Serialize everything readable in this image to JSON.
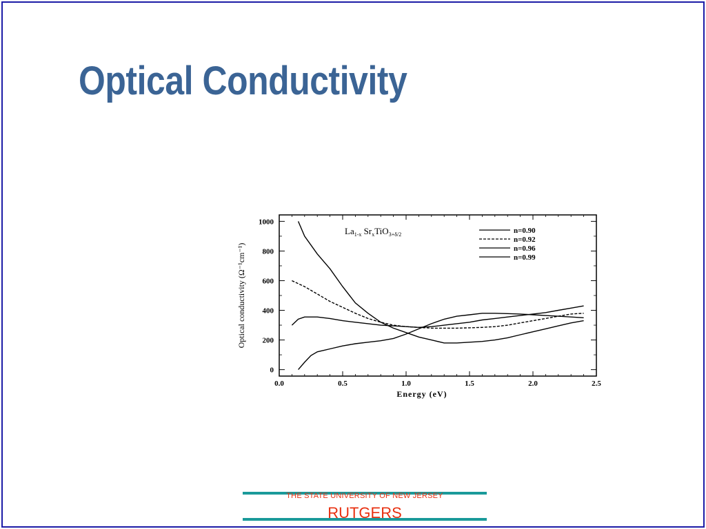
{
  "slide": {
    "title": "Optical Conductivity"
  },
  "footer": {
    "institution_line": "THE STATE UNIVERSITY OF NEW JERSEY",
    "institution_name": "RUTGERS",
    "line_color": "#1a9a9a",
    "text_color": "#e83010"
  },
  "colors": {
    "title": "#3b6495",
    "frame": "#1a1aa6"
  },
  "chart_data": {
    "type": "line",
    "title": "La1-x SrxTiO3+δ/2",
    "title_main": "La",
    "title_sub1": "1-x",
    "title_mid": " Sr",
    "title_sub2": "x",
    "title_mid2": "TiO",
    "title_sub3": "3+δ/2",
    "xlabel": "Energy (eV)",
    "ylabel": "Optical conductivity (Ω⁻¹cm⁻¹)",
    "xlim": [
      0.0,
      2.5
    ],
    "ylim": [
      0,
      1000
    ],
    "xticks": [
      "0.0",
      "0.5",
      "1.0",
      "1.5",
      "2.0",
      "2.5"
    ],
    "yticks": [
      "0",
      "200",
      "400",
      "600",
      "800",
      "1000"
    ],
    "legend_position": "top-right",
    "series": [
      {
        "name": "n=0.90",
        "dash": "solid",
        "points": [
          [
            0.15,
            1000
          ],
          [
            0.2,
            900
          ],
          [
            0.3,
            780
          ],
          [
            0.4,
            680
          ],
          [
            0.5,
            560
          ],
          [
            0.6,
            450
          ],
          [
            0.7,
            380
          ],
          [
            0.8,
            320
          ],
          [
            0.9,
            280
          ],
          [
            1.0,
            250
          ],
          [
            1.1,
            220
          ],
          [
            1.2,
            200
          ],
          [
            1.3,
            180
          ],
          [
            1.4,
            180
          ],
          [
            1.5,
            185
          ],
          [
            1.6,
            190
          ],
          [
            1.7,
            200
          ],
          [
            1.8,
            215
          ],
          [
            1.9,
            235
          ],
          [
            2.0,
            255
          ],
          [
            2.1,
            275
          ],
          [
            2.2,
            295
          ],
          [
            2.3,
            315
          ],
          [
            2.4,
            330
          ]
        ]
      },
      {
        "name": "n=0.92",
        "dash": "dashed",
        "points": [
          [
            0.1,
            600
          ],
          [
            0.2,
            560
          ],
          [
            0.3,
            510
          ],
          [
            0.4,
            460
          ],
          [
            0.5,
            420
          ],
          [
            0.6,
            380
          ],
          [
            0.7,
            345
          ],
          [
            0.8,
            320
          ],
          [
            0.9,
            300
          ],
          [
            1.0,
            290
          ],
          [
            1.1,
            285
          ],
          [
            1.2,
            280
          ],
          [
            1.3,
            280
          ],
          [
            1.4,
            280
          ],
          [
            1.5,
            282
          ],
          [
            1.6,
            285
          ],
          [
            1.7,
            290
          ],
          [
            1.8,
            300
          ],
          [
            1.9,
            315
          ],
          [
            2.0,
            330
          ],
          [
            2.1,
            345
          ],
          [
            2.2,
            360
          ],
          [
            2.3,
            375
          ],
          [
            2.4,
            380
          ]
        ]
      },
      {
        "name": "n=0.96",
        "dash": "solid",
        "points": [
          [
            0.1,
            300
          ],
          [
            0.15,
            340
          ],
          [
            0.2,
            355
          ],
          [
            0.3,
            355
          ],
          [
            0.4,
            345
          ],
          [
            0.5,
            330
          ],
          [
            0.6,
            320
          ],
          [
            0.7,
            310
          ],
          [
            0.8,
            300
          ],
          [
            0.9,
            295
          ],
          [
            1.0,
            290
          ],
          [
            1.1,
            285
          ],
          [
            1.2,
            290
          ],
          [
            1.3,
            300
          ],
          [
            1.4,
            310
          ],
          [
            1.5,
            320
          ],
          [
            1.6,
            335
          ],
          [
            1.7,
            345
          ],
          [
            1.8,
            355
          ],
          [
            1.9,
            365
          ],
          [
            2.0,
            375
          ],
          [
            2.1,
            385
          ],
          [
            2.2,
            400
          ],
          [
            2.3,
            415
          ],
          [
            2.4,
            430
          ]
        ]
      },
      {
        "name": "n=0.99",
        "dash": "solid",
        "points": [
          [
            0.15,
            0
          ],
          [
            0.2,
            50
          ],
          [
            0.25,
            95
          ],
          [
            0.3,
            120
          ],
          [
            0.4,
            140
          ],
          [
            0.5,
            160
          ],
          [
            0.6,
            175
          ],
          [
            0.7,
            185
          ],
          [
            0.8,
            195
          ],
          [
            0.9,
            210
          ],
          [
            1.0,
            240
          ],
          [
            1.1,
            275
          ],
          [
            1.2,
            310
          ],
          [
            1.3,
            340
          ],
          [
            1.4,
            360
          ],
          [
            1.5,
            370
          ],
          [
            1.6,
            380
          ],
          [
            1.7,
            380
          ],
          [
            1.8,
            378
          ],
          [
            1.9,
            375
          ],
          [
            2.0,
            370
          ],
          [
            2.1,
            365
          ],
          [
            2.2,
            360
          ],
          [
            2.3,
            355
          ],
          [
            2.4,
            350
          ]
        ]
      }
    ]
  }
}
